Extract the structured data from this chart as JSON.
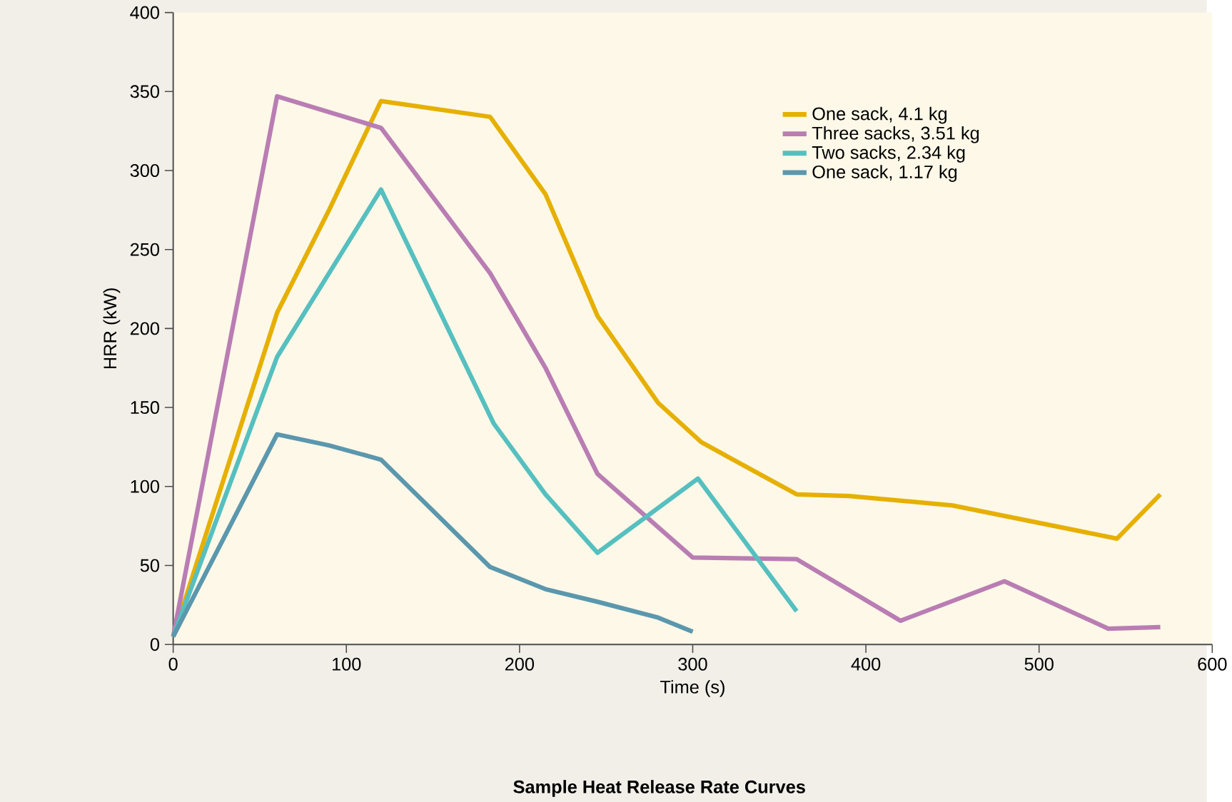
{
  "chart_data": {
    "type": "line",
    "title": "Sample Heat Release Rate Curves",
    "xlabel": "Time (s)",
    "ylabel": "HRR (kW)",
    "xlim": [
      0,
      600
    ],
    "ylim": [
      0,
      400
    ],
    "xticks": [
      0,
      100,
      200,
      300,
      400,
      500,
      600
    ],
    "yticks": [
      0,
      50,
      100,
      150,
      200,
      250,
      300,
      350,
      400
    ],
    "grid": false,
    "legend": "top right",
    "marker": "none",
    "line_style": "solid",
    "series": [
      {
        "name": "One sack, 4.1 kg",
        "color": "#e6b000",
        "x": [
          0,
          60,
          90,
          120,
          183,
          215,
          245,
          280,
          305,
          360,
          390,
          450,
          545,
          570
        ],
        "values": [
          5,
          210,
          275,
          344,
          334,
          285,
          208,
          153,
          128,
          95,
          94,
          88,
          67,
          95
        ]
      },
      {
        "name": "Three sacks, 3.51 kg",
        "color": "#b97db3",
        "x": [
          0,
          60,
          120,
          183,
          215,
          245,
          300,
          360,
          420,
          480,
          540,
          570
        ],
        "values": [
          5,
          347,
          327,
          235,
          175,
          108,
          55,
          54,
          15,
          40,
          10,
          11
        ]
      },
      {
        "name": "Two sacks, 2.34 kg",
        "color": "#56bfbf",
        "x": [
          0,
          60,
          90,
          120,
          185,
          215,
          245,
          303,
          360
        ],
        "values": [
          5,
          182,
          235,
          288,
          140,
          95,
          58,
          105,
          21
        ]
      },
      {
        "name": "One sack, 1.17 kg",
        "color": "#5b97ad",
        "x": [
          0,
          60,
          90,
          120,
          183,
          215,
          245,
          280,
          300
        ],
        "values": [
          5,
          133,
          126,
          117,
          49,
          35,
          27,
          17,
          8
        ]
      }
    ]
  }
}
